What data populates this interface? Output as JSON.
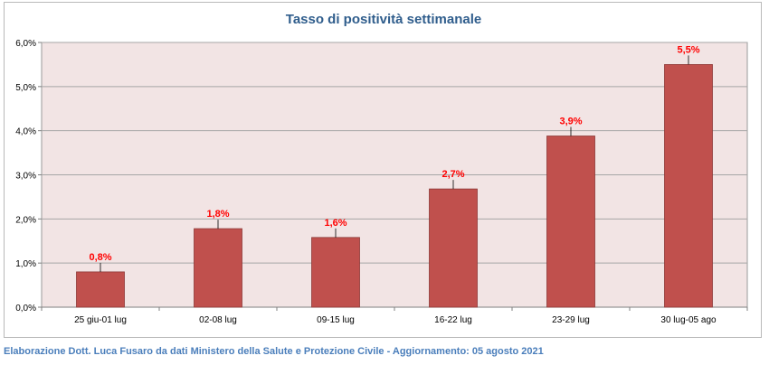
{
  "chart_data": {
    "type": "bar",
    "title": "Tasso di positività settimanale",
    "categories": [
      "25 giu-01 lug",
      "02-08 lug",
      "09-15 lug",
      "16-22 lug",
      "23-29 lug",
      "30 lug-05 ago"
    ],
    "values": [
      0.8,
      1.78,
      1.58,
      2.68,
      3.88,
      5.5
    ],
    "data_labels": [
      "0,8%",
      "1,8%",
      "1,6%",
      "2,7%",
      "3,9%",
      "5,5%"
    ],
    "y_ticks": [
      "0,0%",
      "1,0%",
      "2,0%",
      "3,0%",
      "4,0%",
      "5,0%",
      "6,0%"
    ],
    "ylim": [
      0,
      6
    ],
    "grid": true,
    "bar_color": "#c0504d",
    "plot_bg": "#f2e4e4",
    "label_color": "#ff0000"
  },
  "footer": "Elaborazione Dott. Luca Fusaro da dati Ministero della Salute e Protezione Civile - Aggiornamento: 05 agosto 2021"
}
